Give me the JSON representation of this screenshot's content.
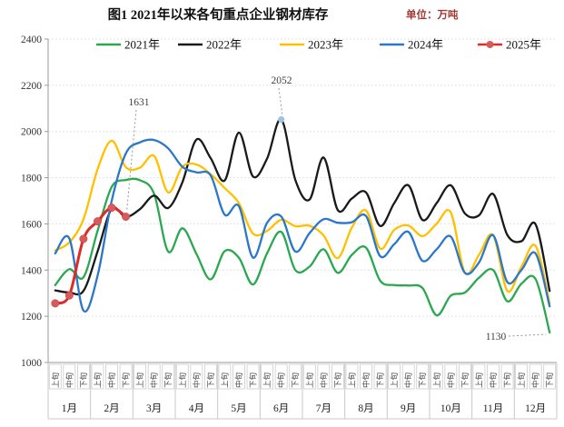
{
  "header": {
    "title": "图1  2021年以来各旬重点企业钢材库存",
    "unit": "单位：万吨"
  },
  "chart_data": {
    "type": "line",
    "title": "图1 2021年以来各旬重点企业钢材库存",
    "unit_label": "单位：万吨",
    "ylabel": "",
    "xlabel": "",
    "ylim": [
      1000,
      2400
    ],
    "ytick_step": 200,
    "yticks": [
      1000,
      1200,
      1400,
      1600,
      1800,
      2000,
      2200,
      2400
    ],
    "grid": "horizontal-dotted",
    "legend_position": "top",
    "months": [
      "1月",
      "2月",
      "3月",
      "4月",
      "5月",
      "6月",
      "7月",
      "8月",
      "9月",
      "10月",
      "11月",
      "12月"
    ],
    "periods": [
      "上旬",
      "中旬",
      "下旬"
    ],
    "colors": {
      "grid": "#d9d9d9",
      "axis": "#999999",
      "band_border": "#c9c9c9",
      "tick_text": "#333333",
      "annotation_text": "#404040"
    },
    "series": [
      {
        "name": "2021年",
        "color": "#2ba84f",
        "marker": false,
        "values": [
          1335,
          1404,
          1369,
          1570,
          1760,
          1790,
          1789,
          1730,
          1480,
          1581,
          1470,
          1360,
          1482,
          1454,
          1338,
          1473,
          1565,
          1400,
          1415,
          1490,
          1388,
          1466,
          1497,
          1354,
          1335,
          1333,
          1322,
          1204,
          1289,
          1303,
          1367,
          1400,
          1265,
          1341,
          1361,
          1130
        ]
      },
      {
        "name": "2022年",
        "color": "#1a1a1a",
        "marker": false,
        "values": [
          1312,
          1303,
          1310,
          1480,
          1665,
          1630,
          1664,
          1722,
          1669,
          1780,
          1965,
          1885,
          1788,
          1995,
          1805,
          1883,
          2052,
          1790,
          1705,
          1887,
          1660,
          1710,
          1736,
          1591,
          1690,
          1767,
          1617,
          1690,
          1767,
          1645,
          1637,
          1729,
          1552,
          1525,
          1598,
          1310
        ]
      },
      {
        "name": "2023年",
        "color": "#ffc000",
        "marker": false,
        "values": [
          1485,
          1520,
          1620,
          1836,
          1960,
          1845,
          1843,
          1894,
          1736,
          1847,
          1857,
          1815,
          1755,
          1690,
          1558,
          1570,
          1618,
          1590,
          1592,
          1550,
          1452,
          1584,
          1658,
          1493,
          1574,
          1593,
          1547,
          1601,
          1650,
          1388,
          1466,
          1551,
          1310,
          1414,
          1505,
          1255
        ]
      },
      {
        "name": "2024年",
        "color": "#2b77c9",
        "marker": false,
        "values": [
          1472,
          1537,
          1225,
          1375,
          1700,
          1905,
          1953,
          1963,
          1927,
          1847,
          1823,
          1810,
          1640,
          1677,
          1454,
          1605,
          1632,
          1480,
          1560,
          1620,
          1605,
          1607,
          1634,
          1460,
          1512,
          1565,
          1440,
          1490,
          1545,
          1388,
          1433,
          1551,
          1348,
          1400,
          1472,
          1243
        ]
      },
      {
        "name": "2025年",
        "color": "#e02a2a",
        "marker": true,
        "marker_fill": "#d45c5c",
        "values": [
          1256,
          1290,
          1535,
          1611,
          1670,
          1631
        ]
      }
    ],
    "annotations": [
      {
        "text": "1631",
        "series": "2025年",
        "point_index": 5
      },
      {
        "text": "2052",
        "series": "2022年",
        "point_index": 16,
        "marker_color": "#9dc3e6"
      },
      {
        "text": "1130",
        "series": "2021年",
        "point_index": 35
      }
    ]
  }
}
